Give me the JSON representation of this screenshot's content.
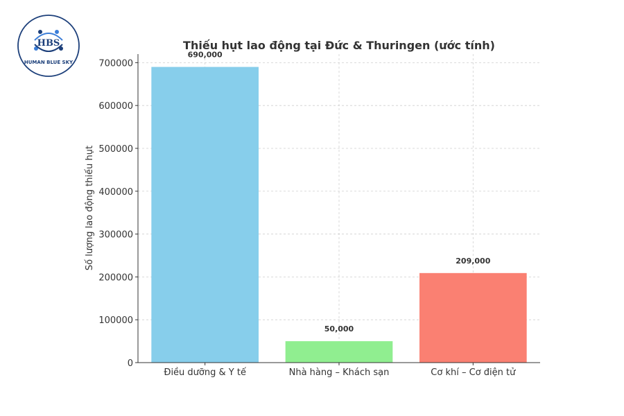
{
  "logo": {
    "initials": "HBS",
    "name": "HUMAN BLUE SKY",
    "color": "#1c3f7a"
  },
  "chart_data": {
    "type": "bar",
    "title": "Thiếu hụt lao động tại Đức & Thuringen (ước tính)",
    "xlabel": "",
    "ylabel": "Số lượng lao động thiếu hụt",
    "categories": [
      "Điều dưỡng & Y tế",
      "Nhà hàng – Khách sạn",
      "Cơ khí – Cơ điện tử"
    ],
    "values": [
      690000,
      50000,
      209000
    ],
    "data_labels": [
      "690,000",
      "50,000",
      "209,000"
    ],
    "colors": [
      "#87ceeb",
      "#90ee90",
      "#fa8072"
    ],
    "ylim": [
      0,
      720000
    ],
    "yticks": [
      0,
      100000,
      200000,
      300000,
      400000,
      500000,
      600000,
      700000
    ],
    "ytick_labels": [
      "0",
      "100000",
      "200000",
      "300000",
      "400000",
      "500000",
      "600000",
      "700000"
    ],
    "grid": true
  }
}
